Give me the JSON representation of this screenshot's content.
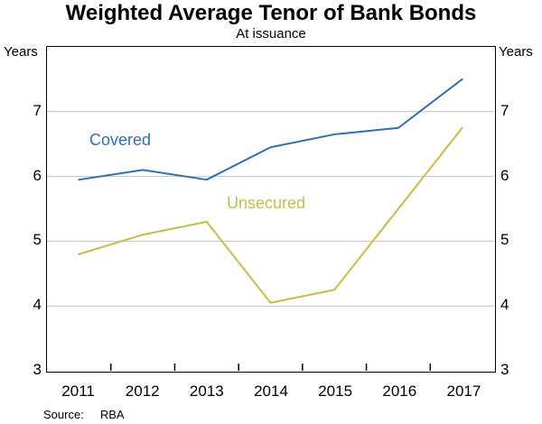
{
  "title": "Weighted Average Tenor of Bank Bonds",
  "subtitle": "At issuance",
  "axis": {
    "left_unit": "Years",
    "right_unit": "Years"
  },
  "source": {
    "label": "Source:",
    "value": "RBA"
  },
  "chart_data": {
    "type": "line",
    "categories": [
      "2011",
      "2012",
      "2013",
      "2014",
      "2015",
      "2016",
      "2017"
    ],
    "series": [
      {
        "name": "Covered",
        "color": "#2f6eb8",
        "values": [
          5.95,
          6.1,
          5.95,
          6.45,
          6.65,
          6.75,
          7.5
        ]
      },
      {
        "name": "Unsecured",
        "color": "#c9bc45",
        "values": [
          4.8,
          5.1,
          5.3,
          4.05,
          4.25,
          5.5,
          6.75
        ]
      }
    ],
    "title": "Weighted Average Tenor of Bank Bonds",
    "xlabel": "",
    "ylabel": "Years",
    "ylim": [
      3,
      8
    ],
    "yticks": [
      3,
      4,
      5,
      6,
      7
    ],
    "gridlines": [
      4,
      5,
      6,
      7
    ],
    "grid_color": "#c4c4c4",
    "frame_color": "#000000",
    "legend_position": "inline-labels"
  }
}
